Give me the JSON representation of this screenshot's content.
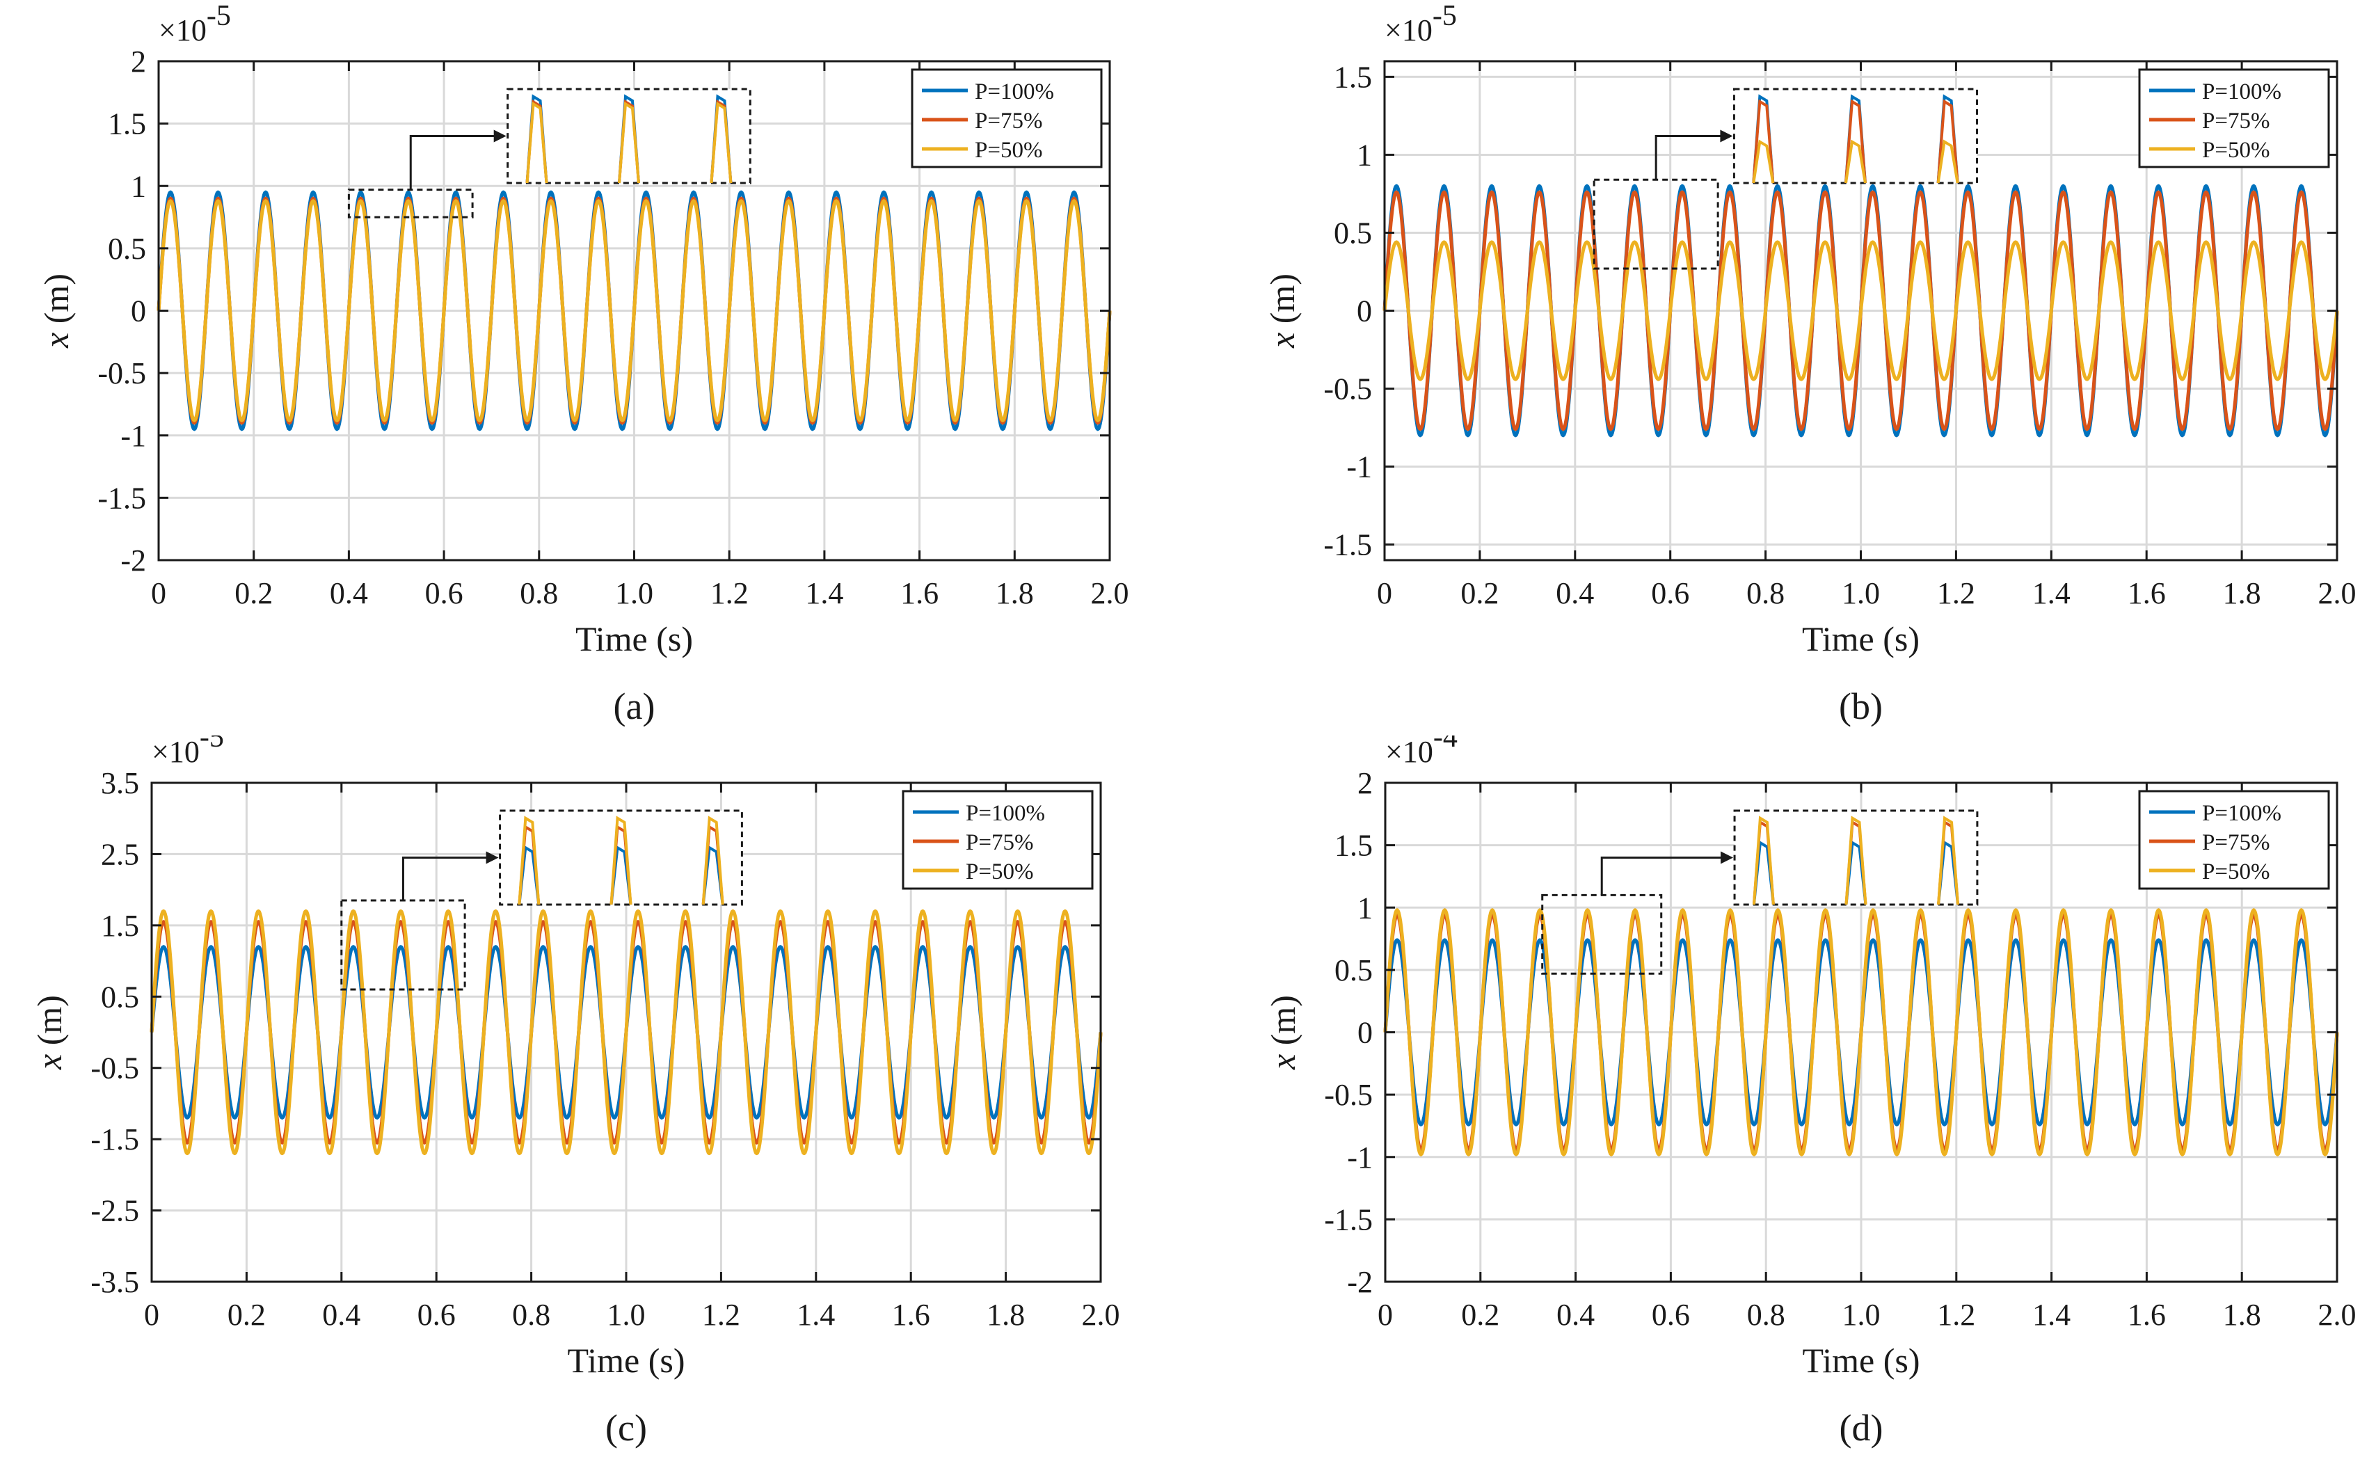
{
  "colors": {
    "p100": "#0072BD",
    "p75": "#D95319",
    "p50": "#EDB120",
    "grid": "#d9d9d9",
    "axis": "#1a1a1a"
  },
  "chart_data": [
    {
      "id": "a",
      "type": "line",
      "panel_label": "(a)",
      "xlabel": "Time (s)",
      "ylabel_var": "x",
      "ylabel_unit": " (m)",
      "exponent_label": "×10",
      "exponent": "-5",
      "xlim": [
        0,
        2.0
      ],
      "ylim": [
        -2,
        2
      ],
      "xticks": [
        "0",
        "0.2",
        "0.4",
        "0.6",
        "0.8",
        "1.0",
        "1.2",
        "1.4",
        "1.6",
        "1.8",
        "2.0"
      ],
      "yticks": [
        "-2",
        "-1.5",
        "-1",
        "-0.5",
        "0",
        "0.5",
        "1",
        "1.5",
        "2"
      ],
      "frequency_hz": 10,
      "legend_position": "top-right",
      "series": [
        {
          "name": "P=100%",
          "amplitude": 0.95
        },
        {
          "name": "P=75%",
          "amplitude": 0.9
        },
        {
          "name": "P=50%",
          "amplitude": 0.88
        }
      ],
      "inset_box": [
        0.4,
        0.66,
        0.75,
        0.97
      ]
    },
    {
      "id": "b",
      "type": "line",
      "panel_label": "(b)",
      "xlabel": "Time (s)",
      "ylabel_var": "x",
      "ylabel_unit": " (m)",
      "exponent_label": "×10",
      "exponent": "-5",
      "xlim": [
        0,
        2.0
      ],
      "ylim": [
        -1.6,
        1.6
      ],
      "xticks": [
        "0",
        "0.2",
        "0.4",
        "0.6",
        "0.8",
        "1.0",
        "1.2",
        "1.4",
        "1.6",
        "1.8",
        "2.0"
      ],
      "yticks": [
        "-1.5",
        "-1",
        "-0.5",
        "0",
        "0.5",
        "1",
        "1.5"
      ],
      "frequency_hz": 10,
      "legend_position": "top-right",
      "series": [
        {
          "name": "P=100%",
          "amplitude": 0.8
        },
        {
          "name": "P=75%",
          "amplitude": 0.76
        },
        {
          "name": "P=50%",
          "amplitude": 0.44
        }
      ],
      "inset_box": [
        0.44,
        0.7,
        0.27,
        0.84
      ]
    },
    {
      "id": "c",
      "type": "line",
      "panel_label": "(c)",
      "xlabel": "Time (s)",
      "ylabel_var": "x",
      "ylabel_unit": " (m)",
      "exponent_label": "×10",
      "exponent": "-5",
      "xlim": [
        0,
        2.0
      ],
      "ylim": [
        -3.5,
        3.5
      ],
      "xticks": [
        "0",
        "0.2",
        "0.4",
        "0.6",
        "0.8",
        "1.0",
        "1.2",
        "1.4",
        "1.6",
        "1.8",
        "2.0"
      ],
      "yticks": [
        "-3.5",
        "-2.5",
        "-1.5",
        "-0.5",
        "0.5",
        "1.5",
        "2.5",
        "3.5"
      ],
      "frequency_hz": 10,
      "legend_position": "top-right",
      "series": [
        {
          "name": "P=100%",
          "amplitude": 1.2
        },
        {
          "name": "P=75%",
          "amplitude": 1.55
        },
        {
          "name": "P=50%",
          "amplitude": 1.7
        }
      ],
      "inset_box": [
        0.4,
        0.66,
        0.6,
        1.85
      ]
    },
    {
      "id": "d",
      "type": "line",
      "panel_label": "(d)",
      "xlabel": "Time (s)",
      "ylabel_var": "x",
      "ylabel_unit": " (m)",
      "exponent_label": "×10",
      "exponent": "-4",
      "xlim": [
        0,
        2.0
      ],
      "ylim": [
        -2,
        2
      ],
      "xticks": [
        "0",
        "0.2",
        "0.4",
        "0.6",
        "0.8",
        "1.0",
        "1.2",
        "1.4",
        "1.6",
        "1.8",
        "2.0"
      ],
      "yticks": [
        "-2",
        "-1.5",
        "-1",
        "-0.5",
        "0",
        "0.5",
        "1",
        "1.5",
        "2"
      ],
      "frequency_hz": 10,
      "legend_position": "top-right",
      "series": [
        {
          "name": "P=100%",
          "amplitude": 0.74
        },
        {
          "name": "P=75%",
          "amplitude": 0.94
        },
        {
          "name": "P=50%",
          "amplitude": 0.98
        }
      ],
      "inset_box": [
        0.33,
        0.58,
        0.47,
        1.1
      ]
    }
  ]
}
